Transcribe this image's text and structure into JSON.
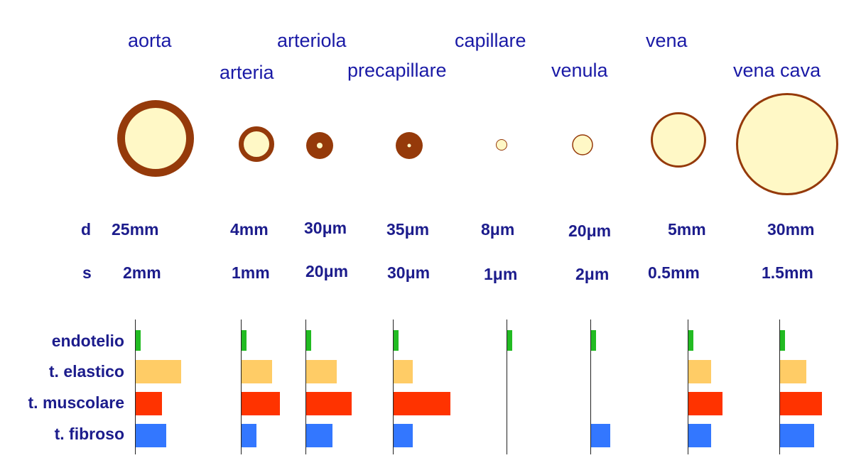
{
  "vessels": [
    {
      "name": "aorta",
      "d": "25mm",
      "s": "2mm",
      "composition": {
        "endotelio": 1,
        "elastico": 6,
        "muscolare": 3.5,
        "fibroso": 4
      }
    },
    {
      "name": "arteria",
      "d": "4mm",
      "s": "1mm",
      "composition": {
        "endotelio": 1,
        "elastico": 4,
        "muscolare": 5,
        "fibroso": 2
      }
    },
    {
      "name": "arteriola",
      "d": "30μm",
      "s": "20μm",
      "composition": {
        "endotelio": 1,
        "elastico": 4,
        "muscolare": 6,
        "fibroso": 3.5
      }
    },
    {
      "name": "precapillare",
      "d": "35μm",
      "s": "30μm",
      "composition": {
        "endotelio": 1,
        "elastico": 2.5,
        "muscolare": 7.5,
        "fibroso": 2.5
      }
    },
    {
      "name": "capillare",
      "d": "8μm",
      "s": "1μm",
      "composition": {
        "endotelio": 1,
        "elastico": 0,
        "muscolare": 0,
        "fibroso": 0
      }
    },
    {
      "name": "venula",
      "d": "20μm",
      "s": "2μm",
      "composition": {
        "endotelio": 1,
        "elastico": 0,
        "muscolare": 0,
        "fibroso": 2.5
      }
    },
    {
      "name": "vena",
      "d": "5mm",
      "s": "0.5mm",
      "composition": {
        "endotelio": 1,
        "elastico": 3,
        "muscolare": 4.5,
        "fibroso": 3
      }
    },
    {
      "name": "vena cava",
      "d": "30mm",
      "s": "1.5mm",
      "composition": {
        "endotelio": 1,
        "elastico": 3.5,
        "muscolare": 5.5,
        "fibroso": 4.5
      }
    }
  ],
  "labels": {
    "d": "d",
    "s": "s",
    "endotelio": "endotelio",
    "elastico": "t. elastico",
    "muscolare": "t. muscolare",
    "fibroso": "t. fibroso"
  },
  "colors": {
    "lumen": "#fff8c6",
    "wall": "#953a0a",
    "endotelio": "#22bb22",
    "elastico": "#ffcc66",
    "muscolare": "#ff3300",
    "fibroso": "#3377ff",
    "text": "#1a1aa6"
  }
}
